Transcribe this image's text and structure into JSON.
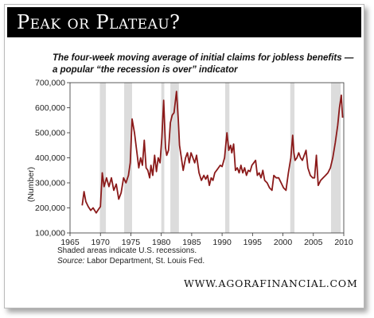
{
  "header": {
    "title": "Peak or Plateau?",
    "subtitle_line1": "The four-week moving average of initial claims for jobless benefits —",
    "subtitle_line2": "a popular “the recession is over” indicator"
  },
  "notes": {
    "shaded": "Shaded areas indicate U.S. recessions.",
    "source_label": "Source:",
    "source_text": "Labor Department, St. Louis Fed."
  },
  "footer": {
    "website": "WWW.AGORAFINANCIAL.COM"
  },
  "colors": {
    "line": "#8b1a1a",
    "recession": "#dcdcdc",
    "title_bar": "#000000"
  },
  "chart_data": {
    "type": "line",
    "title": "",
    "xlabel": "",
    "ylabel": "(Number)",
    "xlim": [
      1965,
      2010
    ],
    "ylim": [
      100000,
      700000
    ],
    "x_ticks": [
      1965,
      1970,
      1975,
      1980,
      1985,
      1990,
      1995,
      2000,
      2005,
      2010
    ],
    "y_ticks": [
      100000,
      200000,
      300000,
      400000,
      500000,
      600000,
      700000
    ],
    "y_tick_labels": [
      "100,000",
      "200,000",
      "300,000",
      "400,000",
      "500,000",
      "600,000",
      "700,000"
    ],
    "grid": false,
    "recessions": [
      [
        1969.9,
        1970.9
      ],
      [
        1973.9,
        1975.2
      ],
      [
        1980.0,
        1980.5
      ],
      [
        1981.5,
        1982.9
      ],
      [
        1990.5,
        1991.2
      ],
      [
        2001.2,
        2001.9
      ],
      [
        2007.9,
        2009.5
      ]
    ],
    "series": [
      {
        "name": "",
        "x": [
          1967.0,
          1967.3,
          1967.6,
          1968.0,
          1968.4,
          1968.8,
          1969.3,
          1969.7,
          1970.0,
          1970.3,
          1970.6,
          1971.0,
          1971.4,
          1971.8,
          1972.2,
          1972.6,
          1973.0,
          1973.4,
          1973.8,
          1974.2,
          1974.6,
          1974.9,
          1975.2,
          1975.6,
          1976.0,
          1976.3,
          1976.6,
          1976.9,
          1977.2,
          1977.5,
          1977.8,
          1978.1,
          1978.3,
          1978.6,
          1978.9,
          1979.2,
          1979.5,
          1979.8,
          1980.1,
          1980.4,
          1980.7,
          1980.9,
          1981.2,
          1981.5,
          1981.8,
          1982.1,
          1982.5,
          1982.8,
          1983.0,
          1983.3,
          1983.6,
          1984.0,
          1984.3,
          1984.6,
          1984.9,
          1985.2,
          1985.5,
          1985.8,
          1986.2,
          1986.6,
          1987.0,
          1987.3,
          1987.6,
          1987.9,
          1988.2,
          1988.5,
          1988.8,
          1989.1,
          1989.4,
          1989.7,
          1990.0,
          1990.4,
          1990.8,
          1991.1,
          1991.4,
          1991.6,
          1991.9,
          1992.2,
          1992.5,
          1992.8,
          1993.1,
          1993.4,
          1993.7,
          1994.0,
          1994.3,
          1994.6,
          1994.9,
          1995.2,
          1995.5,
          1995.8,
          1996.1,
          1996.4,
          1996.7,
          1997.0,
          1997.4,
          1997.8,
          1998.2,
          1998.5,
          1998.9,
          1999.3,
          1999.7,
          2000.1,
          2000.5,
          2000.9,
          2001.3,
          2001.6,
          2001.8,
          2002.0,
          2002.3,
          2002.6,
          2002.9,
          2003.2,
          2003.5,
          2003.8,
          2004.1,
          2004.5,
          2004.9,
          2005.2,
          2005.5,
          2005.8,
          2006.2,
          2006.6,
          2007.0,
          2007.4,
          2007.8,
          2008.2,
          2008.6,
          2009.0,
          2009.3,
          2009.6,
          2009.8
        ],
        "y": [
          210000,
          265000,
          225000,
          205000,
          190000,
          200000,
          180000,
          195000,
          205000,
          340000,
          285000,
          320000,
          285000,
          320000,
          270000,
          295000,
          235000,
          260000,
          320000,
          300000,
          330000,
          380000,
          555000,
          500000,
          420000,
          360000,
          400000,
          370000,
          470000,
          360000,
          350000,
          320000,
          370000,
          330000,
          410000,
          345000,
          400000,
          380000,
          480000,
          630000,
          440000,
          410000,
          430000,
          540000,
          570000,
          580000,
          665000,
          550000,
          450000,
          400000,
          350000,
          400000,
          420000,
          380000,
          420000,
          400000,
          380000,
          410000,
          340000,
          310000,
          330000,
          315000,
          330000,
          290000,
          320000,
          310000,
          340000,
          350000,
          360000,
          370000,
          365000,
          400000,
          500000,
          430000,
          450000,
          420000,
          455000,
          350000,
          360000,
          340000,
          370000,
          340000,
          360000,
          330000,
          350000,
          345000,
          370000,
          380000,
          390000,
          330000,
          340000,
          320000,
          350000,
          310000,
          300000,
          280000,
          270000,
          330000,
          320000,
          320000,
          300000,
          280000,
          270000,
          340000,
          400000,
          490000,
          420000,
          390000,
          400000,
          420000,
          400000,
          390000,
          410000,
          430000,
          360000,
          330000,
          320000,
          320000,
          410000,
          290000,
          310000,
          320000,
          330000,
          340000,
          360000,
          400000,
          460000,
          530000,
          600000,
          650000,
          560000
        ]
      }
    ]
  }
}
